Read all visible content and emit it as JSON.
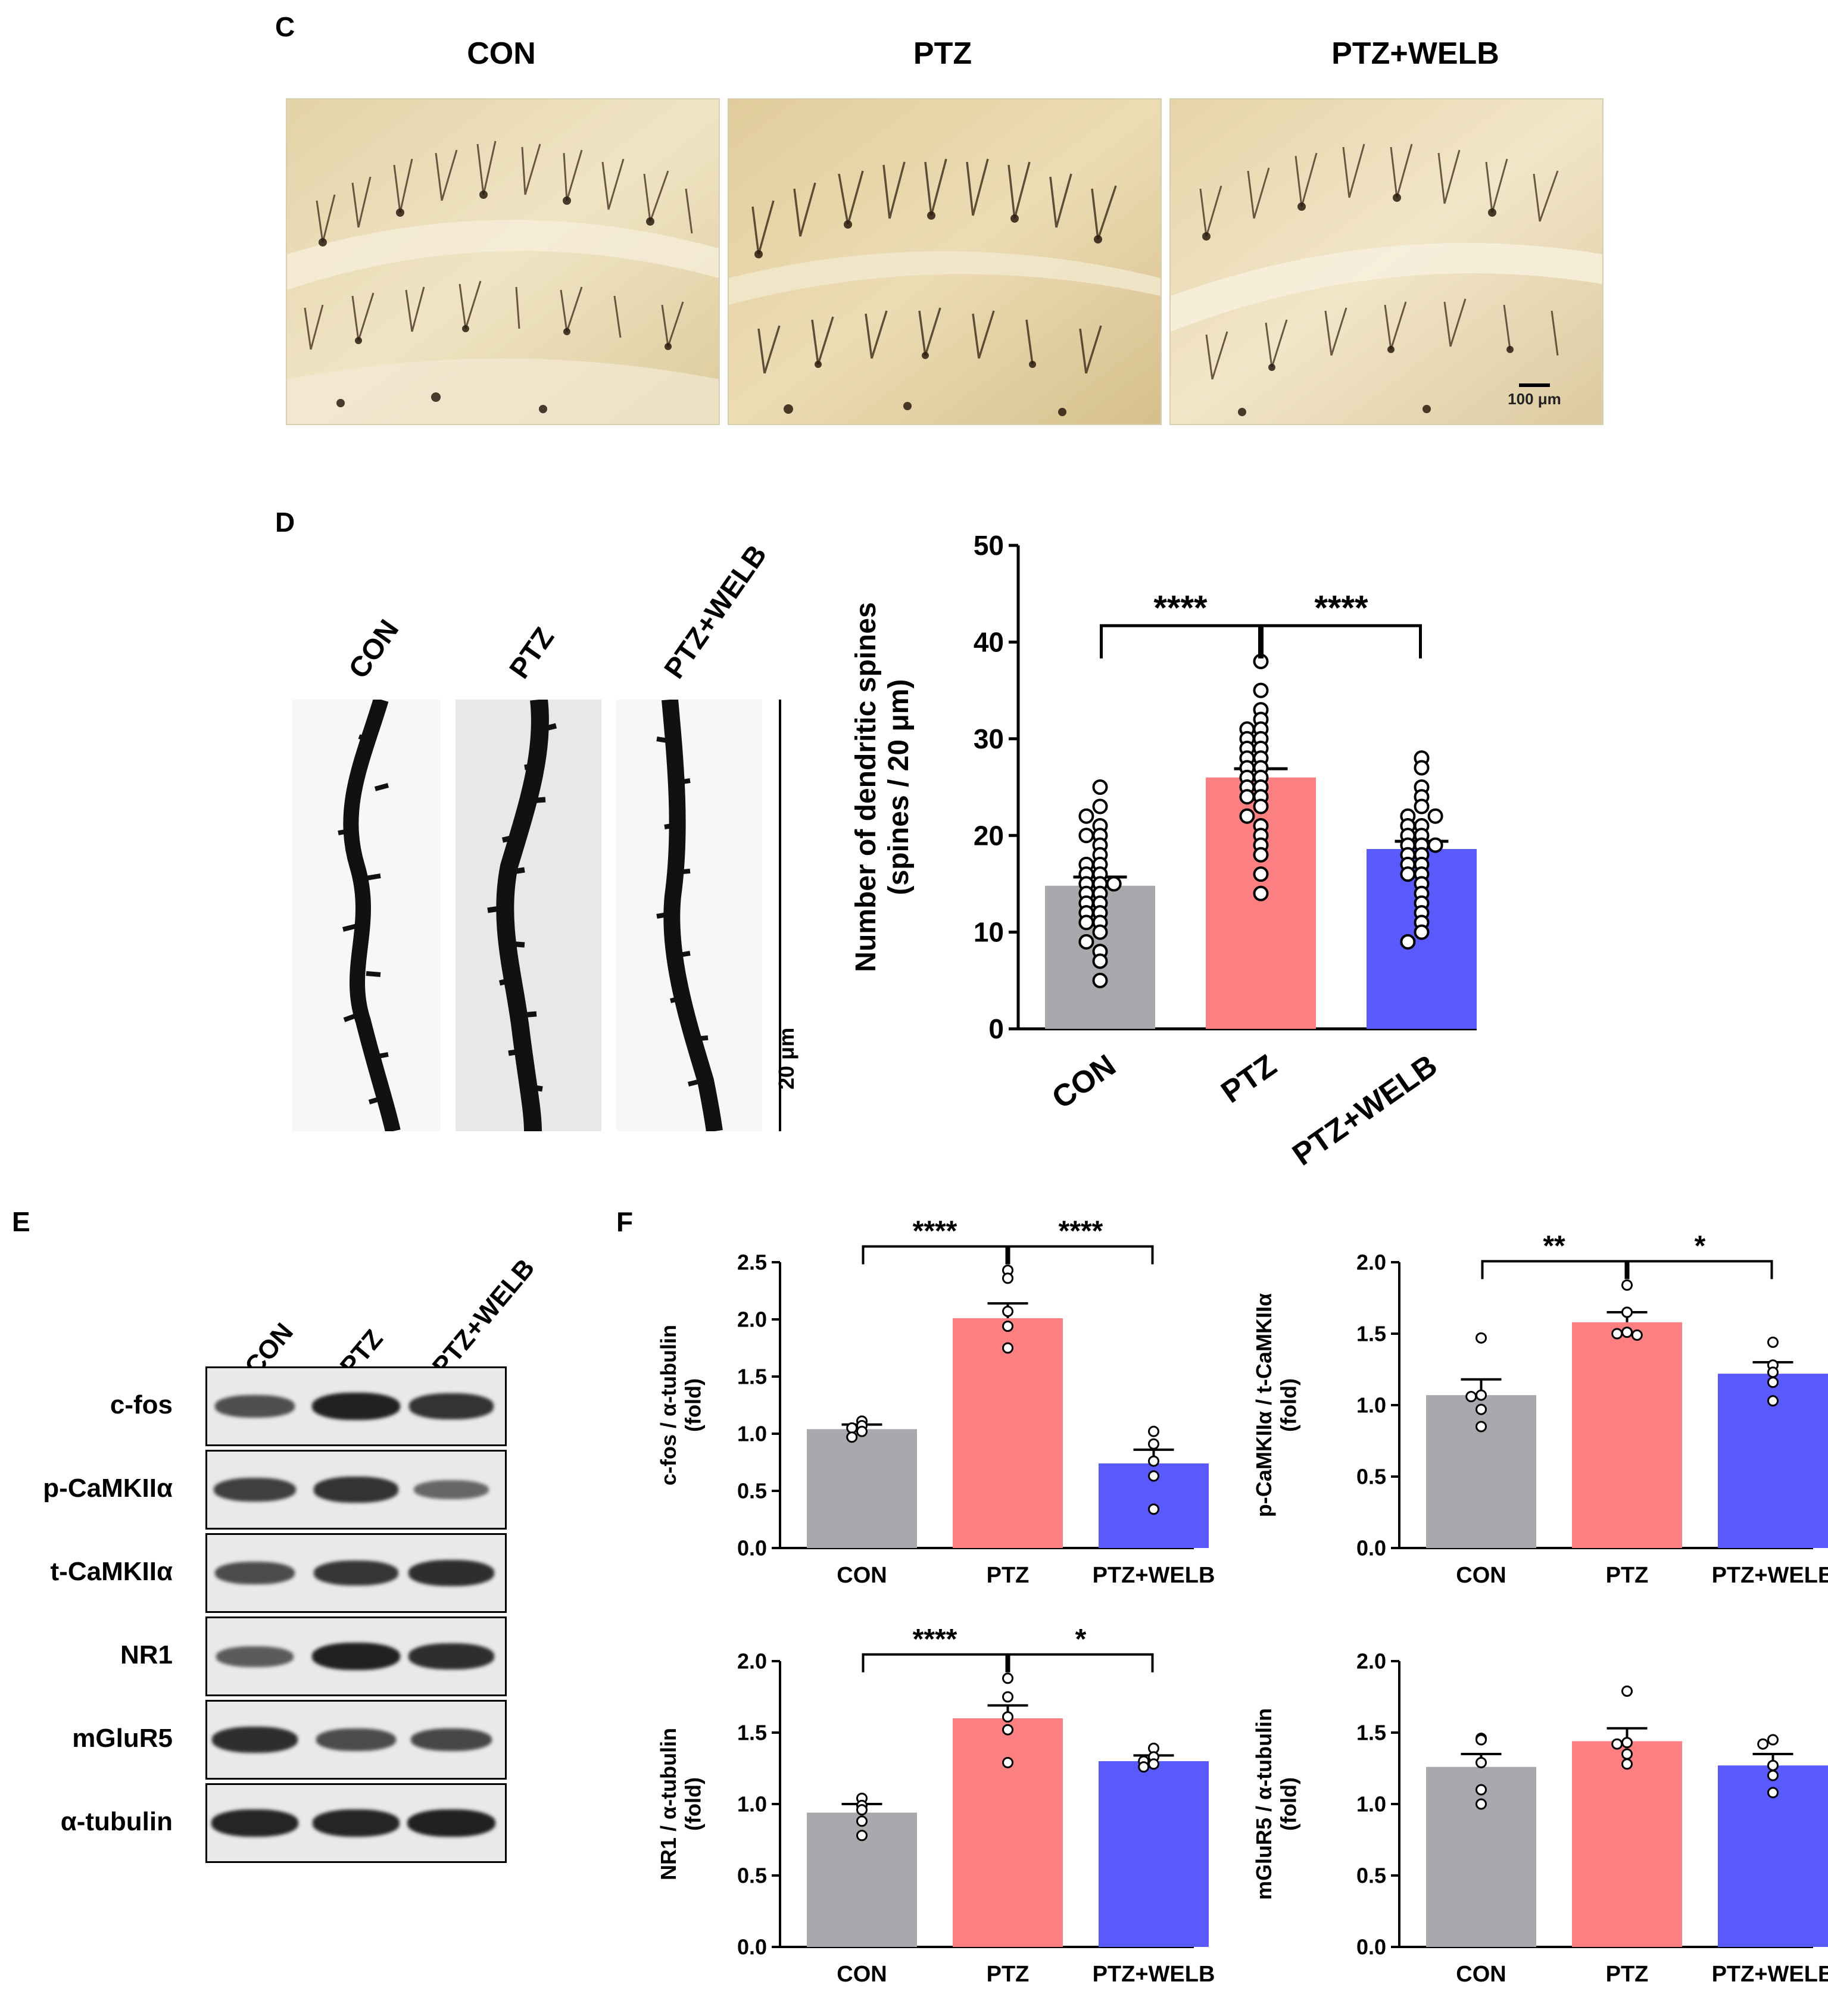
{
  "panel_c": {
    "letter": "C",
    "groups": [
      "CON",
      "PTZ",
      "PTZ+WELB"
    ],
    "scale_bar": "100 μm"
  },
  "panel_d": {
    "letter": "D",
    "groups": [
      "CON",
      "PTZ",
      "PTZ+WELB"
    ],
    "scale_bar": "20 μm"
  },
  "panel_e": {
    "letter": "E",
    "lanes": [
      "CON",
      "PTZ",
      "PTZ+WELB"
    ],
    "proteins": [
      "c-fos",
      "p-CaMKIIα",
      "t-CaMKIIα",
      "NR1",
      "mGluR5",
      "α-tubulin"
    ],
    "band_intensity": [
      [
        0.6,
        0.95,
        0.82
      ],
      [
        0.72,
        0.82,
        0.42
      ],
      [
        0.62,
        0.78,
        0.85
      ],
      [
        0.5,
        0.95,
        0.85
      ],
      [
        0.85,
        0.62,
        0.65
      ],
      [
        0.92,
        0.92,
        0.95
      ]
    ]
  },
  "panel_f": {
    "letter": "F"
  },
  "colors": {
    "con": "#a9a9ad",
    "ptz": "#fc8082",
    "welb": "#5a5afc"
  },
  "chart_data": [
    {
      "id": "spines",
      "type": "bar",
      "categories": [
        "CON",
        "PTZ",
        "PTZ+WELB"
      ],
      "values": [
        14.8,
        26.0,
        18.6
      ],
      "sem": [
        0.9,
        0.9,
        0.8
      ],
      "points": [
        [
          25,
          23,
          22,
          21,
          20,
          20,
          19,
          18,
          17,
          17,
          16,
          16,
          15,
          15,
          15,
          14,
          14,
          13,
          13,
          12,
          12,
          11,
          11,
          10,
          9,
          8,
          7,
          5
        ],
        [
          38,
          35,
          33,
          32,
          31,
          31,
          30,
          30,
          29,
          29,
          28,
          28,
          27,
          27,
          26,
          26,
          25,
          25,
          24,
          24,
          23,
          22,
          21,
          20,
          19,
          18,
          16,
          14
        ],
        [
          28,
          27,
          25,
          24,
          23,
          22,
          22,
          21,
          21,
          20,
          20,
          19,
          19,
          19,
          18,
          18,
          17,
          17,
          16,
          16,
          15,
          14,
          13,
          12,
          11,
          10,
          9
        ]
      ],
      "ylabel": [
        "Number of dendritic spines",
        "(spines / 20 μm)"
      ],
      "ylim": [
        0,
        50
      ],
      "yticks": [
        "0",
        "10",
        "20",
        "30",
        "40",
        "50"
      ],
      "significance": [
        {
          "from": 0,
          "to": 1,
          "label": "****"
        },
        {
          "from": 1,
          "to": 2,
          "label": "****"
        }
      ]
    },
    {
      "id": "cfos",
      "type": "bar",
      "categories": [
        "CON",
        "PTZ",
        "PTZ+WELB"
      ],
      "values": [
        1.04,
        2.01,
        0.74
      ],
      "sem": [
        0.04,
        0.13,
        0.12
      ],
      "points": [
        [
          1.11,
          1.07,
          1.05,
          1.02,
          0.97
        ],
        [
          2.43,
          2.36,
          2.07,
          1.94,
          1.75
        ],
        [
          1.02,
          0.91,
          0.76,
          0.63,
          0.34
        ]
      ],
      "ylabel": [
        "c-fos / α-tubulin",
        "(fold)"
      ],
      "ylim": [
        0,
        2.5
      ],
      "yticks": [
        "0.0",
        "0.5",
        "1.0",
        "1.5",
        "2.0",
        "2.5"
      ],
      "significance": [
        {
          "from": 0,
          "to": 1,
          "label": "****"
        },
        {
          "from": 1,
          "to": 2,
          "label": "****"
        }
      ]
    },
    {
      "id": "pcamk",
      "type": "bar",
      "categories": [
        "CON",
        "PTZ",
        "PTZ+WELB"
      ],
      "values": [
        1.07,
        1.58,
        1.22
      ],
      "sem": [
        0.11,
        0.07,
        0.08
      ],
      "points": [
        [
          1.47,
          1.07,
          1.06,
          0.97,
          0.85
        ],
        [
          1.84,
          1.65,
          1.51,
          1.5,
          1.49
        ],
        [
          1.44,
          1.28,
          1.23,
          1.16,
          1.03
        ]
      ],
      "ylabel": [
        "p-CaMKIIα / t-CaMKIIα",
        "(fold)"
      ],
      "ylim": [
        0,
        2.0
      ],
      "yticks": [
        "0.0",
        "0.5",
        "1.0",
        "1.5",
        "2.0"
      ],
      "significance": [
        {
          "from": 0,
          "to": 1,
          "label": "**"
        },
        {
          "from": 1,
          "to": 2,
          "label": "*"
        }
      ]
    },
    {
      "id": "nr1",
      "type": "bar",
      "categories": [
        "CON",
        "PTZ",
        "PTZ+WELB"
      ],
      "values": [
        0.94,
        1.6,
        1.3
      ],
      "sem": [
        0.06,
        0.09,
        0.04
      ],
      "points": [
        [
          1.04,
          0.99,
          0.96,
          0.88,
          0.78
        ],
        [
          1.88,
          1.75,
          1.61,
          1.52,
          1.29
        ],
        [
          1.39,
          1.33,
          1.3,
          1.28,
          1.26
        ]
      ],
      "ylabel": [
        "NR1 / α-tubulin",
        "(fold)"
      ],
      "ylim": [
        0,
        2.0
      ],
      "yticks": [
        "0.0",
        "0.5",
        "1.0",
        "1.5",
        "2.0"
      ],
      "significance": [
        {
          "from": 0,
          "to": 1,
          "label": "****"
        },
        {
          "from": 1,
          "to": 2,
          "label": "*"
        }
      ]
    },
    {
      "id": "mglur5",
      "type": "bar",
      "categories": [
        "CON",
        "PTZ",
        "PTZ+WELB"
      ],
      "values": [
        1.26,
        1.44,
        1.27
      ],
      "sem": [
        0.09,
        0.09,
        0.08
      ],
      "points": [
        [
          1.46,
          1.45,
          1.29,
          1.1,
          1.0
        ],
        [
          1.79,
          1.43,
          1.42,
          1.35,
          1.28
        ],
        [
          1.45,
          1.42,
          1.27,
          1.2,
          1.08
        ]
      ],
      "ylabel": [
        "mGluR5 / α-tubulin",
        "(fold)"
      ],
      "ylim": [
        0,
        2.0
      ],
      "yticks": [
        "0.0",
        "0.5",
        "1.0",
        "1.5",
        "2.0"
      ],
      "significance": []
    }
  ]
}
